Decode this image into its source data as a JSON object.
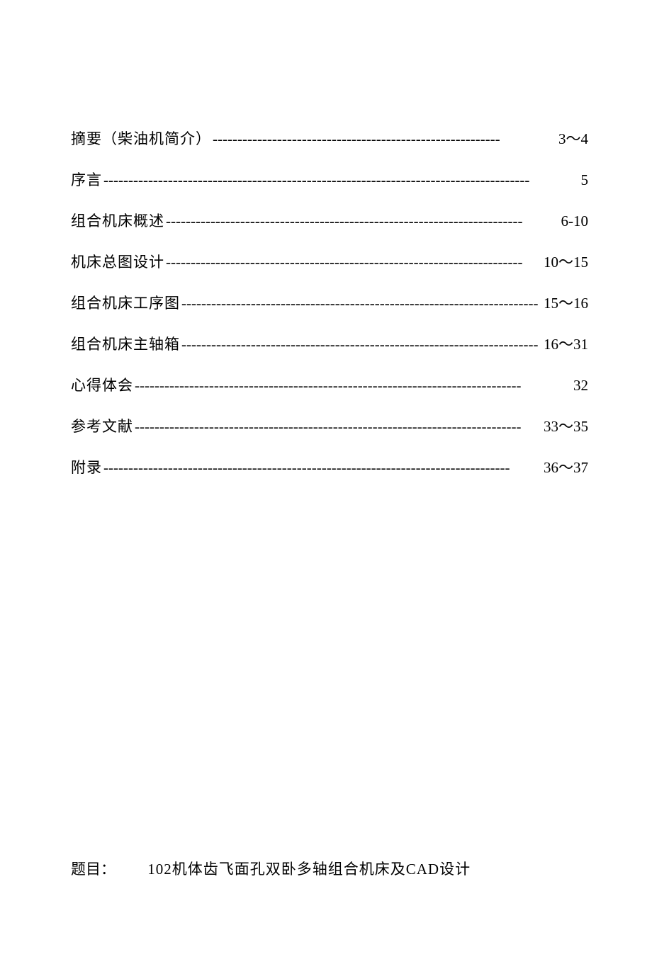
{
  "toc": {
    "entries": [
      {
        "title": "摘要（柴油机简介）",
        "page": "3～4"
      },
      {
        "title": "序言",
        "page": "5"
      },
      {
        "title": "组合机床概述",
        "page": "6-10"
      },
      {
        "title": "机床总图设计",
        "page": "10～15"
      },
      {
        "title": "组合机床工序图",
        "page": "15～16"
      },
      {
        "title": "组合机床主轴箱",
        "page": "16～31"
      },
      {
        "title": "心得体会",
        "page": "32"
      },
      {
        "title": "参考文献",
        "page": "33～35"
      },
      {
        "title": "附录",
        "page": "36～37"
      }
    ]
  },
  "footer": {
    "label": "题目：",
    "text": "102机体齿飞面孔双卧多轴组合机床及CAD设计"
  },
  "styling": {
    "background_color": "#ffffff",
    "text_color": "#000000",
    "font_family": "SimSun",
    "toc_fontsize": 21,
    "footer_fontsize": 21,
    "entry_spacing": 28,
    "dash_char": "-"
  }
}
